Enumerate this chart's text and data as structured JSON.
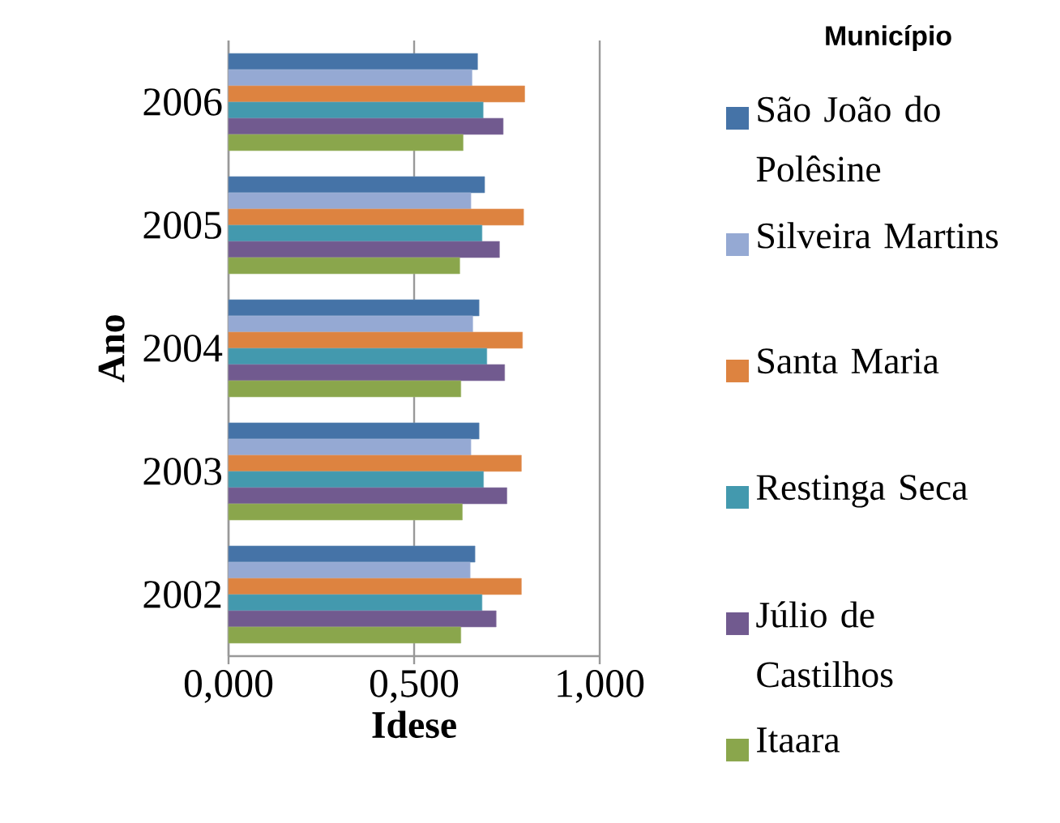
{
  "chart_data": {
    "type": "bar",
    "orientation": "horizontal",
    "xlabel": "Idese",
    "ylabel": "Ano",
    "legend_title": "Município",
    "legend": "right",
    "grid": "x",
    "categories": [
      "2006",
      "2005",
      "2004",
      "2003",
      "2002"
    ],
    "xlim": [
      0,
      1
    ],
    "xticks": [
      {
        "value": 0,
        "label": "0,000"
      },
      {
        "value": 0.5,
        "label": "0,500"
      },
      {
        "value": 1,
        "label": "1,000"
      }
    ],
    "series": [
      {
        "name": "São João do Polêsine",
        "color": "#4573a7",
        "values": [
          0.671,
          0.69,
          0.675,
          0.675,
          0.664
        ]
      },
      {
        "name": "Silveira Martins",
        "color": "#95a9d3",
        "values": [
          0.656,
          0.653,
          0.658,
          0.653,
          0.651
        ]
      },
      {
        "name": "Santa Maria",
        "color": "#dd8340",
        "values": [
          0.798,
          0.795,
          0.792,
          0.789,
          0.789
        ]
      },
      {
        "name": "Restinga Seca",
        "color": "#4399ae",
        "values": [
          0.686,
          0.683,
          0.696,
          0.687,
          0.683
        ]
      },
      {
        "name": "Júlio de Castilhos",
        "color": "#715a8f",
        "values": [
          0.74,
          0.73,
          0.744,
          0.75,
          0.721
        ]
      },
      {
        "name": "Itaara",
        "color": "#8aa64c",
        "values": [
          0.632,
          0.623,
          0.626,
          0.63,
          0.626
        ]
      }
    ]
  }
}
